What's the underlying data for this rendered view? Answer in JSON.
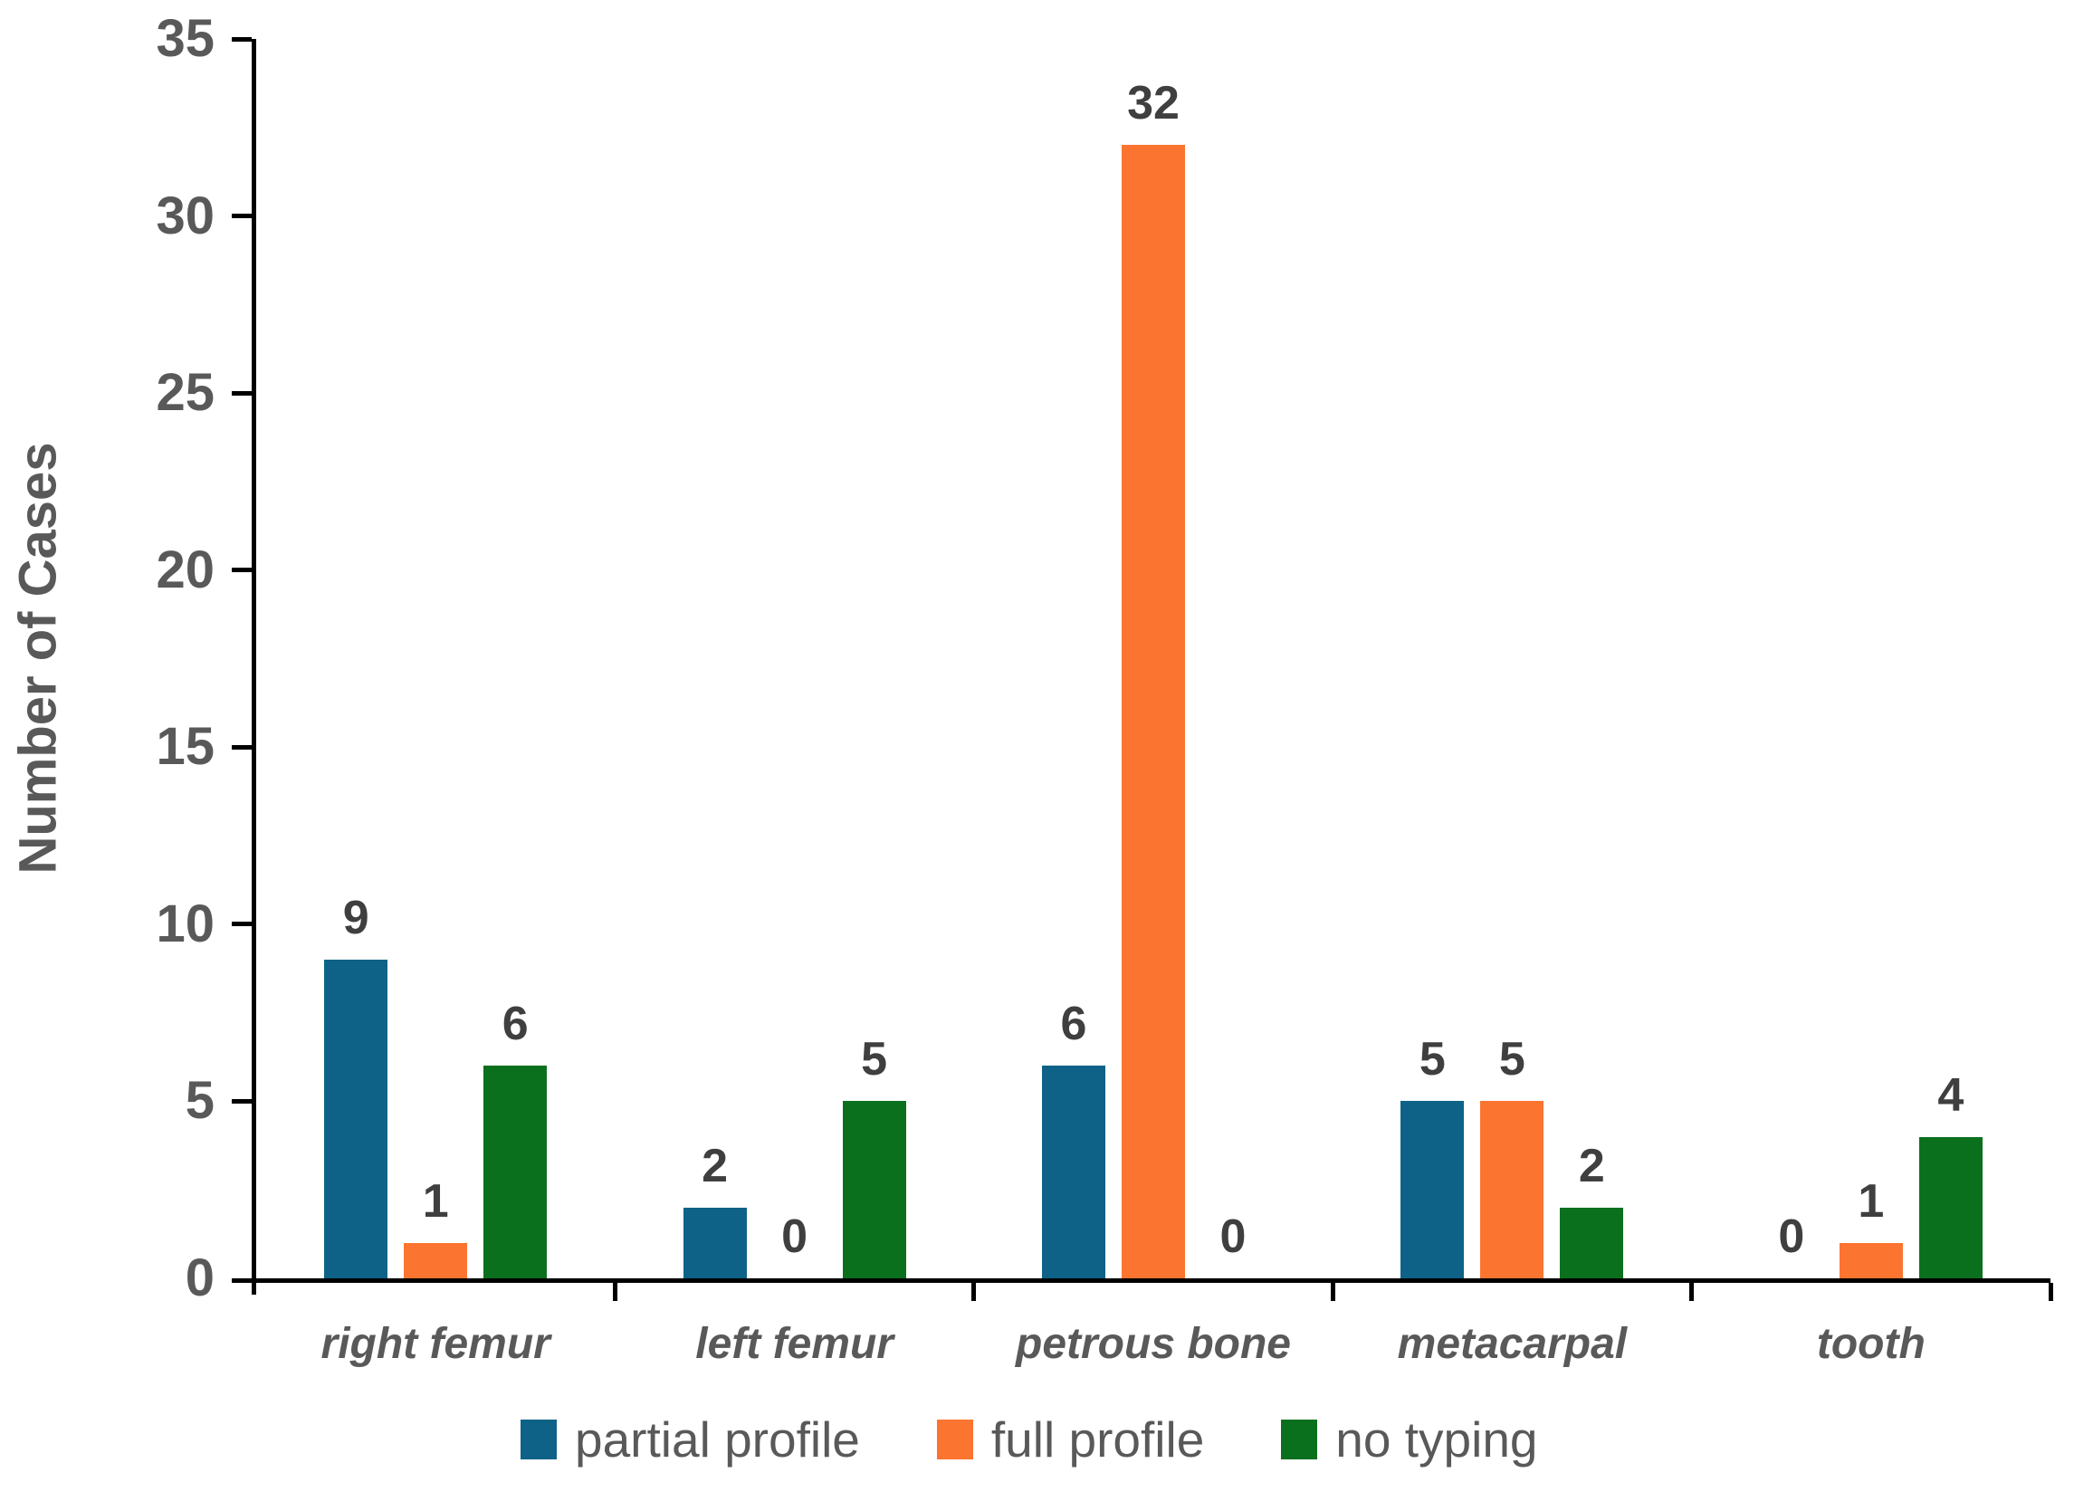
{
  "chart_data": {
    "type": "bar",
    "title": "",
    "xlabel": "",
    "ylabel": "Number of Cases",
    "categories": [
      "right femur",
      "left femur",
      "petrous bone",
      "metacarpal",
      "tooth"
    ],
    "series": [
      {
        "name": "partial profile",
        "color": "#0E6287",
        "values": [
          9,
          2,
          6,
          5,
          0
        ]
      },
      {
        "name": "full profile",
        "color": "#FB7430",
        "values": [
          1,
          0,
          32,
          5,
          1
        ]
      },
      {
        "name": "no typing",
        "color": "#0B701E",
        "values": [
          6,
          5,
          0,
          2,
          4
        ]
      }
    ],
    "ylim": [
      0,
      35
    ],
    "ytick_step": 5,
    "ytick_labels": [
      "0",
      "5",
      "10",
      "15",
      "20",
      "25",
      "30",
      "35"
    ],
    "grid": false,
    "legend_position": "bottom",
    "value_labels_shown": true,
    "colors": {
      "background": "#FFFFFF",
      "axis": "#000000",
      "tick_label_text": "#595959",
      "value_label_text": "#3F3F3F",
      "category_label_text": "#595959",
      "legend_text": "#595959"
    }
  }
}
